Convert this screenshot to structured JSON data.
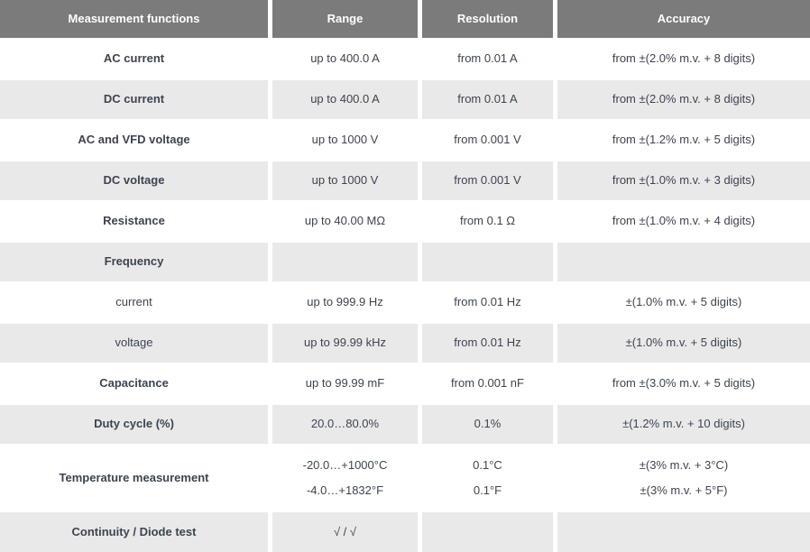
{
  "colors": {
    "header_bg": "#7b7b7b",
    "header_text": "#ffffff",
    "row_bg": "#ffffff",
    "row_alt_bg": "#e9e9e9",
    "cell_text": "#3d4450"
  },
  "table": {
    "headers": [
      "Measurement functions",
      "Range",
      "Resolution",
      "Accuracy"
    ],
    "rows": [
      {
        "function": "AC current",
        "range": "up to 400.0 A",
        "resolution": "from 0.01 A",
        "accuracy": "from ±(2.0% m.v. + 8 digits)"
      },
      {
        "function": "DC current",
        "range": "up to 400.0 A",
        "resolution": "from 0.01 A",
        "accuracy": "from ±(2.0% m.v. + 8 digits)"
      },
      {
        "function": "AC and VFD voltage",
        "range": "up to 1000 V",
        "resolution": "from 0.001 V",
        "accuracy": "from ±(1.2% m.v. + 5 digits)"
      },
      {
        "function": "DC voltage",
        "range": "up to 1000 V",
        "resolution": "from 0.001 V",
        "accuracy": "from ±(1.0% m.v. + 3 digits)"
      },
      {
        "function": "Resistance",
        "range": "up to 40.00 MΩ",
        "resolution": "from 0.1 Ω",
        "accuracy": "from ±(1.0% m.v. + 4 digits)"
      },
      {
        "function": "Frequency",
        "range": "",
        "resolution": "",
        "accuracy": ""
      },
      {
        "function": "current",
        "range": "up to 999.9 Hz",
        "resolution": "from 0.01 Hz",
        "accuracy": "±(1.0% m.v. + 5 digits)"
      },
      {
        "function": "voltage",
        "range": "up to 99.99 kHz",
        "resolution": "from 0.01 Hz",
        "accuracy": "±(1.0% m.v. + 5 digits)"
      },
      {
        "function": "Capacitance",
        "range": "up to 99.99 mF",
        "resolution": "from 0.001 nF",
        "accuracy": "from ±(3.0% m.v. + 5 digits)"
      },
      {
        "function": "Duty cycle (%)",
        "range": "20.0…80.0%",
        "resolution": "0.1%",
        "accuracy": "±(1.2% m.v. + 10 digits)"
      }
    ],
    "temperature_row": {
      "function": "Temperature measurement",
      "range_line1": "-20.0…+1000°C",
      "range_line2": "-4.0…+1832°F",
      "resolution_line1": "0.1°C",
      "resolution_line2": "0.1°F",
      "accuracy_line1": "±(3% m.v. + 3°C)",
      "accuracy_line2": "±(3% m.v. + 5°F)"
    },
    "last_row": {
      "function": "Continuity / Diode test",
      "range": "√ / √",
      "resolution": "",
      "accuracy": ""
    }
  }
}
